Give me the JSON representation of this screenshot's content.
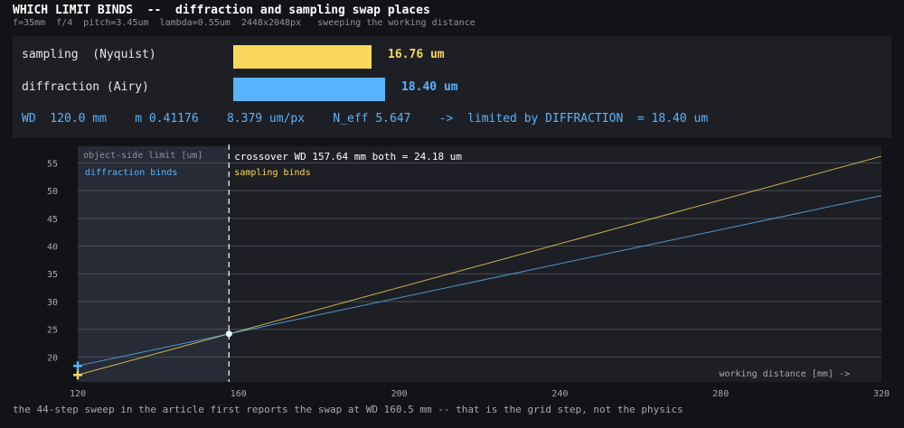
{
  "header": {
    "title": "WHICH LIMIT BINDS  --  diffraction and sampling swap places",
    "subtitle": "f=35mm  f/4  pitch=3.45um  lambda=0.55um  2448x2048px   sweeping the working distance"
  },
  "panel": {
    "rows": [
      {
        "label": "sampling  (Nyquist)",
        "value_text": "16.76 um",
        "value": 16.76,
        "color": "#f9d85c"
      },
      {
        "label": "diffraction (Airy)",
        "value_text": "18.40 um",
        "value": 18.4,
        "color": "#58b4ff"
      }
    ],
    "status": "WD  120.0 mm    m 0.41176    8.379 um/px    N_eff 5.647    ->  limited by DIFFRACTION  = 18.40 um"
  },
  "chart_data": {
    "type": "line",
    "xlabel": "working distance [mm] ->",
    "ylabel": "object-side limit [um]",
    "xlim": [
      120,
      320
    ],
    "ylim": [
      15.5,
      58
    ],
    "x_ticks": [
      120,
      160,
      200,
      240,
      280,
      320
    ],
    "y_ticks": [
      20,
      25,
      30,
      35,
      40,
      45,
      50,
      55
    ],
    "grid": true,
    "series": [
      {
        "name": "sampling",
        "color": "#f9d85c",
        "x": [
          120,
          320
        ],
        "y": [
          16.76,
          56.2
        ]
      },
      {
        "name": "diffraction",
        "color": "#58b4ff",
        "x": [
          120,
          320
        ],
        "y": [
          18.4,
          49.1
        ]
      }
    ],
    "shaded_region": {
      "x_from": 120,
      "x_to": 157.64,
      "label": "diffraction binds"
    },
    "right_region_label": "sampling binds",
    "crossover": {
      "x": 157.64,
      "y": 24.18,
      "label": "crossover  WD 157.64 mm    both = 24.18 um"
    },
    "current_wd": 120.0
  },
  "footnote": "the 44-step sweep in the article first reports the swap at WD 160.5 mm -- that is the grid step, not the physics"
}
